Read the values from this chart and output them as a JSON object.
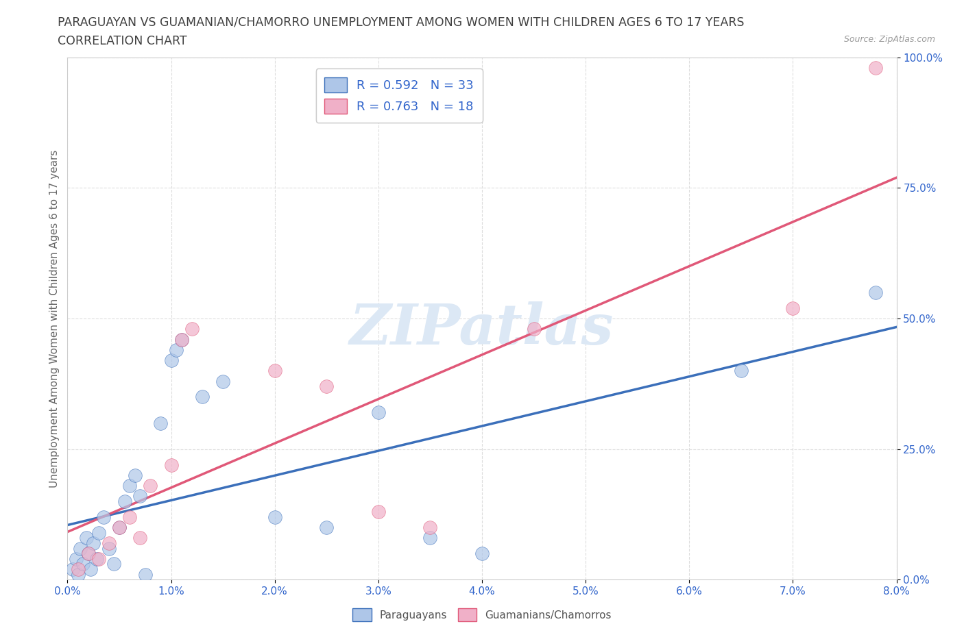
{
  "title_line1": "PARAGUAYAN VS GUAMANIAN/CHAMORRO UNEMPLOYMENT AMONG WOMEN WITH CHILDREN AGES 6 TO 17 YEARS",
  "title_line2": "CORRELATION CHART",
  "source": "Source: ZipAtlas.com",
  "xlabel_ticks": [
    "0.0%",
    "1.0%",
    "2.0%",
    "3.0%",
    "4.0%",
    "5.0%",
    "6.0%",
    "7.0%",
    "8.0%"
  ],
  "ylabel_ticks": [
    "0.0%",
    "25.0%",
    "50.0%",
    "75.0%",
    "100.0%"
  ],
  "xlabel_values": [
    0.0,
    1.0,
    2.0,
    3.0,
    4.0,
    5.0,
    6.0,
    7.0,
    8.0
  ],
  "ylabel_values": [
    0.0,
    25.0,
    50.0,
    75.0,
    100.0
  ],
  "xlim": [
    0.0,
    8.0
  ],
  "ylim": [
    0.0,
    100.0
  ],
  "ylabel": "Unemployment Among Women with Children Ages 6 to 17 years",
  "R_blue": 0.592,
  "N_blue": 33,
  "R_pink": 0.763,
  "N_pink": 18,
  "blue_color": "#aec6e8",
  "pink_color": "#f0b0c8",
  "blue_line_color": "#3b6fba",
  "pink_line_color": "#e05878",
  "blue_scatter": [
    [
      0.05,
      2.0
    ],
    [
      0.08,
      4.0
    ],
    [
      0.1,
      1.0
    ],
    [
      0.12,
      6.0
    ],
    [
      0.15,
      3.0
    ],
    [
      0.18,
      8.0
    ],
    [
      0.2,
      5.0
    ],
    [
      0.22,
      2.0
    ],
    [
      0.25,
      7.0
    ],
    [
      0.28,
      4.0
    ],
    [
      0.3,
      9.0
    ],
    [
      0.35,
      12.0
    ],
    [
      0.4,
      6.0
    ],
    [
      0.45,
      3.0
    ],
    [
      0.5,
      10.0
    ],
    [
      0.55,
      15.0
    ],
    [
      0.6,
      18.0
    ],
    [
      0.65,
      20.0
    ],
    [
      0.7,
      16.0
    ],
    [
      0.75,
      1.0
    ],
    [
      0.9,
      30.0
    ],
    [
      1.0,
      42.0
    ],
    [
      1.05,
      44.0
    ],
    [
      1.1,
      46.0
    ],
    [
      1.3,
      35.0
    ],
    [
      1.5,
      38.0
    ],
    [
      2.0,
      12.0
    ],
    [
      2.5,
      10.0
    ],
    [
      3.0,
      32.0
    ],
    [
      3.5,
      8.0
    ],
    [
      4.0,
      5.0
    ],
    [
      6.5,
      40.0
    ],
    [
      7.8,
      55.0
    ]
  ],
  "pink_scatter": [
    [
      0.1,
      2.0
    ],
    [
      0.2,
      5.0
    ],
    [
      0.3,
      4.0
    ],
    [
      0.4,
      7.0
    ],
    [
      0.5,
      10.0
    ],
    [
      0.6,
      12.0
    ],
    [
      0.7,
      8.0
    ],
    [
      0.8,
      18.0
    ],
    [
      1.0,
      22.0
    ],
    [
      1.1,
      46.0
    ],
    [
      1.2,
      48.0
    ],
    [
      2.0,
      40.0
    ],
    [
      2.5,
      37.0
    ],
    [
      3.0,
      13.0
    ],
    [
      3.5,
      10.0
    ],
    [
      4.5,
      48.0
    ],
    [
      7.0,
      52.0
    ],
    [
      7.8,
      98.0
    ]
  ],
  "blue_trend": [
    0.0,
    7.0,
    55.0
  ],
  "pink_trend": [
    -5.0,
    0.0,
    90.0
  ],
  "watermark_text": "ZIPatlas",
  "background_color": "#ffffff",
  "grid_color": "#dddddd",
  "title_color": "#404040",
  "legend_color": "#3366cc"
}
